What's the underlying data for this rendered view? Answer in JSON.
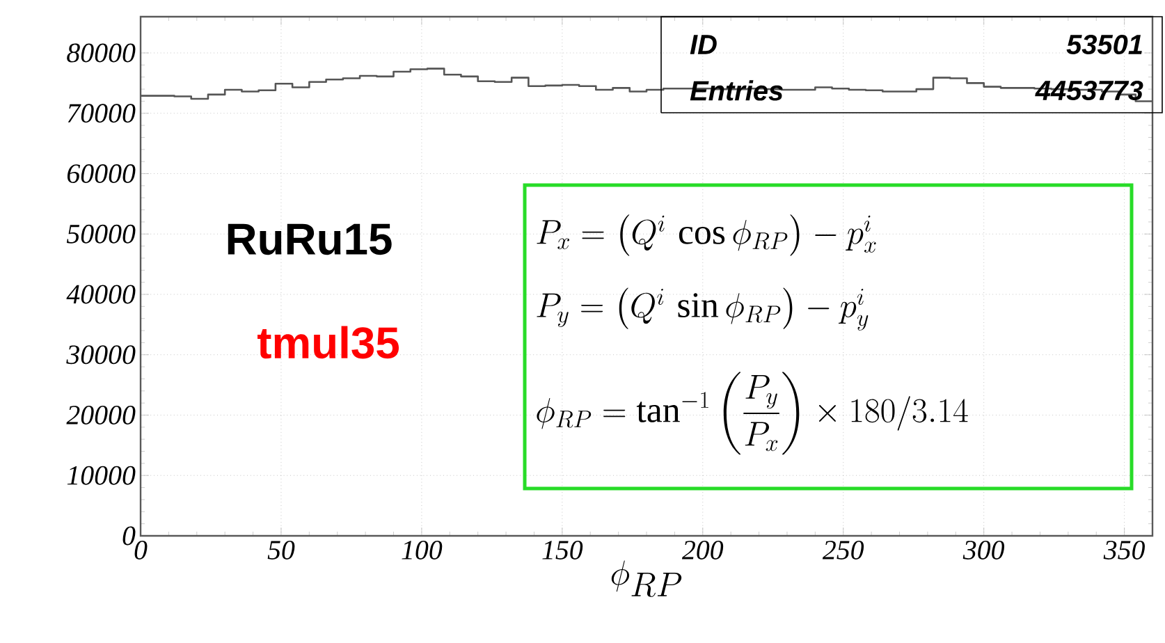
{
  "chart_data": {
    "type": "histogram",
    "xlabel": "\\phi_{RP}",
    "color": "#555555",
    "bins": [
      0,
      6,
      12,
      18,
      24,
      30,
      36,
      42,
      48,
      54,
      60,
      66,
      72,
      78,
      84,
      90,
      96,
      102,
      108,
      114,
      120,
      126,
      132,
      138,
      144,
      150,
      156,
      162,
      168,
      174,
      180,
      186,
      192,
      198,
      204,
      210,
      216,
      222,
      228,
      234,
      240,
      246,
      252,
      258,
      264,
      270,
      276,
      282,
      288,
      294,
      300,
      306,
      312,
      318,
      324,
      330,
      336,
      342,
      348,
      354,
      360
    ],
    "values": [
      72900,
      72900,
      72800,
      72400,
      73100,
      73900,
      73600,
      73800,
      74900,
      74300,
      75200,
      75600,
      75800,
      76200,
      76100,
      76900,
      77300,
      77400,
      76400,
      76100,
      75300,
      75200,
      75900,
      74500,
      74600,
      74700,
      74500,
      73900,
      74200,
      73600,
      73900,
      74100,
      74100,
      74100,
      74000,
      74000,
      74100,
      74000,
      73900,
      73900,
      74300,
      74100,
      73900,
      73800,
      73600,
      73600,
      74000,
      75900,
      75800,
      75000,
      74400,
      74200,
      74200,
      74100,
      74000,
      73900,
      73900,
      73600,
      73100,
      72000
    ],
    "xlim": [
      0,
      360
    ],
    "ylim": [
      0,
      86000
    ],
    "xticks": [
      0,
      50,
      100,
      150,
      200,
      250,
      300,
      350
    ],
    "yticks": [
      0,
      10000,
      20000,
      30000,
      40000,
      50000,
      60000,
      70000,
      80000
    ],
    "grid": true,
    "annotations": [
      "ID",
      "53501",
      "Entries",
      "4453773",
      "RuRu15",
      "tmul35",
      "P_x=\\left(Q^i\\,\\cos\\phi_{RP}\\right)-p_x^i",
      "P_y=\\left(Q^i\\,\\sin\\phi_{RP}\\right)-p_y^i",
      "\\phi_{RP}=\\tan^{-1}\\left(\\frac{P_y}{P_x}\\right)\\times 180/3.14"
    ]
  }
}
